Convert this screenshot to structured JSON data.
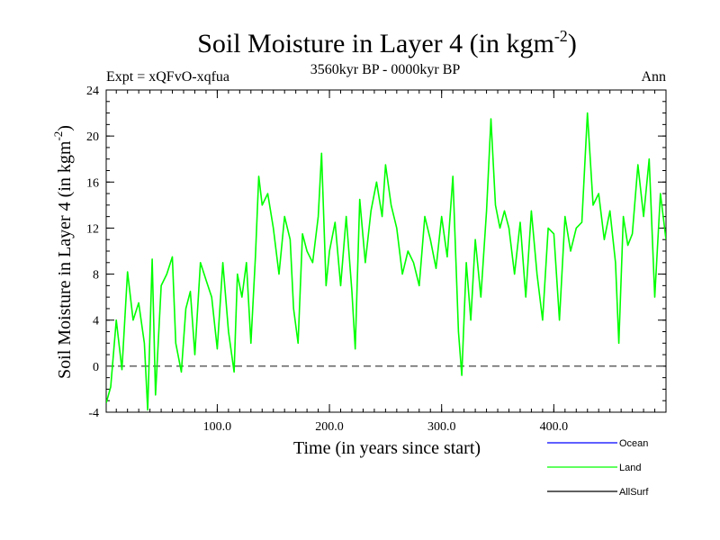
{
  "chart_data": {
    "type": "line",
    "title_main": "Soil Moisture in Layer 4 (in kgm",
    "title_sup": "-2",
    "title_close": ")",
    "expt_label": "Expt = xQFvO-xqfua",
    "period_label": "3560kyr BP - 0000kyr BP",
    "season_label": "Ann",
    "xlabel": "Time (in years since start)",
    "ylabel_main": "Soil Moisture in Layer 4 (in kgm",
    "ylabel_sup": "-2",
    "ylabel_close": ")",
    "xlim": [
      1,
      500
    ],
    "ylim": [
      -4,
      24
    ],
    "x_ticks": [
      100,
      200,
      300,
      400
    ],
    "x_tick_labels": [
      "100.0",
      "200.0",
      "300.0",
      "400.0"
    ],
    "y_ticks": [
      -4,
      0,
      4,
      8,
      12,
      16,
      20,
      24
    ],
    "y_tick_labels": [
      "-4",
      "0",
      "4",
      "8",
      "12",
      "16",
      "20",
      "24"
    ],
    "zero_line": 0,
    "legend": [
      {
        "name": "Ocean",
        "color": "#0000ff"
      },
      {
        "name": "Land",
        "color": "#00ff00"
      },
      {
        "name": "AllSurf",
        "color": "#000000"
      }
    ],
    "series": [
      {
        "name": "Land",
        "color": "#00ff00",
        "x": [
          1,
          5,
          10,
          15,
          20,
          25,
          30,
          35,
          38,
          42,
          45,
          50,
          55,
          60,
          63,
          68,
          72,
          76,
          80,
          85,
          90,
          95,
          100,
          105,
          110,
          115,
          118,
          122,
          126,
          130,
          134,
          137,
          140,
          145,
          150,
          155,
          160,
          165,
          168,
          172,
          176,
          180,
          185,
          190,
          193,
          197,
          200,
          205,
          210,
          215,
          220,
          223,
          227,
          232,
          237,
          242,
          247,
          250,
          255,
          260,
          265,
          270,
          275,
          280,
          285,
          290,
          295,
          300,
          305,
          310,
          315,
          318,
          322,
          326,
          330,
          335,
          340,
          344,
          348,
          352,
          356,
          360,
          365,
          370,
          375,
          380,
          385,
          390,
          395,
          400,
          405,
          410,
          415,
          420,
          425,
          430,
          435,
          440,
          445,
          450,
          455,
          458,
          462,
          466,
          470,
          475,
          480,
          485,
          490,
          495,
          500
        ],
        "values": [
          -3.2,
          -1.8,
          4.0,
          -0.3,
          8.2,
          4.0,
          5.5,
          2.0,
          -3.8,
          9.3,
          -2.5,
          7.0,
          8.0,
          9.5,
          2.0,
          -0.5,
          5.0,
          6.5,
          1.0,
          9.0,
          7.5,
          6.0,
          1.5,
          9.0,
          3.0,
          -0.5,
          8.0,
          6.0,
          9.0,
          2.0,
          9.5,
          16.5,
          14.0,
          15.0,
          12.0,
          8.0,
          13.0,
          11.0,
          5.0,
          2.0,
          11.5,
          10.0,
          9.0,
          13.0,
          18.5,
          7.0,
          10.0,
          12.5,
          7.0,
          13.0,
          6.5,
          1.5,
          14.5,
          9.0,
          13.5,
          16.0,
          13.0,
          17.5,
          14.0,
          12.0,
          8.0,
          10.0,
          9.0,
          7.0,
          13.0,
          11.0,
          8.5,
          13.0,
          9.5,
          16.5,
          3.0,
          -0.8,
          9.0,
          4.0,
          11.0,
          6.0,
          13.5,
          21.5,
          14.0,
          12.0,
          13.5,
          12.0,
          8.0,
          12.5,
          6.0,
          13.5,
          8.0,
          4.0,
          12.0,
          11.5,
          4.0,
          13.0,
          10.0,
          12.0,
          12.5,
          22.0,
          14.0,
          15.0,
          11.0,
          13.5,
          9.0,
          2.0,
          13.0,
          10.5,
          11.5,
          17.5,
          13.0,
          18.0,
          6.0,
          15.0,
          11.0
        ]
      }
    ]
  }
}
